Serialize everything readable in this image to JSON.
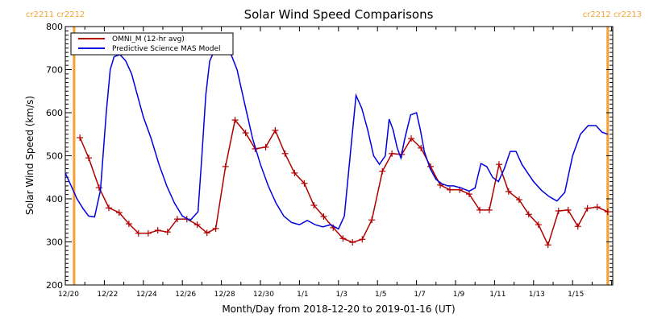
{
  "colors": {
    "omni": "#b00000",
    "model": "#0000e0",
    "carrington": "#f5a030",
    "axis": "#000000"
  },
  "chart_data": {
    "type": "line",
    "title": "Solar Wind Speed Comparisons",
    "xlabel": "Month/Day from 2018-12-20 to 2019-01-16 (UT)",
    "ylabel": "Solar Wind Speed (km/s)",
    "ylim": [
      200,
      800
    ],
    "xlim_days": [
      0,
      28.1
    ],
    "yticks": [
      200,
      300,
      400,
      500,
      600,
      700,
      800
    ],
    "ytick_labels": [
      "200",
      "300",
      "400",
      "500",
      "600",
      "700",
      "800"
    ],
    "xticks_days": [
      0,
      2,
      4,
      6,
      8,
      10,
      12,
      14,
      16,
      18,
      20,
      22,
      24,
      26
    ],
    "xtick_labels": [
      "12/20",
      "12/22",
      "12/24",
      "12/26",
      "12/28",
      "12/30",
      "1/1",
      "1/3",
      "1/5",
      "1/7",
      "1/9",
      "1/11",
      "1/13",
      "1/15"
    ],
    "legend": {
      "position": "top-left",
      "entries": [
        "OMNI_M (12-hr avg)",
        "Predictive Science MAS Model"
      ]
    },
    "carrington_markers": [
      {
        "day": 0.45,
        "labels": [
          "cr2211",
          "cr2212"
        ],
        "side": "left"
      },
      {
        "day": 27.8,
        "labels": [
          "cr2212",
          "cr2213"
        ],
        "side": "right"
      }
    ],
    "series": [
      {
        "name": "OMNI_M (12-hr avg)",
        "x_days": [
          0.75,
          1.2,
          1.73,
          2.23,
          2.76,
          3.26,
          3.75,
          4.25,
          4.74,
          5.24,
          5.74,
          6.23,
          6.76,
          7.26,
          7.71,
          8.21,
          8.7,
          9.24,
          9.73,
          10.27,
          10.76,
          11.26,
          11.75,
          12.25,
          12.74,
          13.24,
          13.73,
          14.23,
          14.72,
          15.22,
          15.71,
          16.25,
          16.74,
          17.24,
          17.73,
          18.23,
          18.72,
          19.22,
          19.71,
          20.21,
          20.7,
          21.24,
          21.73,
          22.23,
          22.72,
          23.26,
          23.75,
          24.25,
          24.74,
          25.28,
          25.77,
          26.27,
          26.76,
          27.26,
          27.8
        ],
        "values": [
          542,
          495,
          426,
          379,
          368,
          342,
          320,
          320,
          327,
          323,
          353,
          353,
          340,
          321,
          331,
          475,
          583,
          553,
          516,
          520,
          559,
          505,
          460,
          436,
          385,
          359,
          333,
          308,
          299,
          306,
          351,
          464,
          505,
          503,
          540,
          518,
          475,
          432,
          421,
          421,
          411,
          374,
          374,
          480,
          417,
          398,
          364,
          340,
          293,
          372,
          374,
          336,
          378,
          381,
          370
        ]
      },
      {
        "name": "Predictive Science MAS Model",
        "x_days": [
          0,
          0.3,
          0.6,
          0.9,
          1.2,
          1.5,
          1.8,
          2.1,
          2.3,
          2.5,
          2.8,
          3.1,
          3.4,
          3.7,
          4.0,
          4.4,
          4.8,
          5.2,
          5.6,
          6.0,
          6.4,
          6.8,
          7.0,
          7.2,
          7.4,
          7.6,
          7.9,
          8.2,
          8.5,
          8.8,
          9.2,
          9.6,
          10.0,
          10.4,
          10.8,
          11.2,
          11.6,
          12.0,
          12.4,
          12.8,
          13.2,
          13.6,
          14.0,
          14.3,
          14.6,
          14.9,
          15.2,
          15.5,
          15.8,
          16.1,
          16.4,
          16.6,
          16.8,
          17.0,
          17.2,
          17.4,
          17.7,
          18.0,
          18.2,
          18.4,
          18.7,
          19.0,
          19.3,
          19.6,
          19.9,
          20.3,
          20.7,
          21.0,
          21.3,
          21.6,
          21.9,
          22.2,
          22.5,
          22.8,
          23.1,
          23.4,
          23.7,
          24.0,
          24.4,
          24.8,
          25.2,
          25.6,
          26.0,
          26.4,
          26.8,
          27.2,
          27.5,
          27.8
        ],
        "values": [
          460,
          430,
          400,
          378,
          360,
          358,
          420,
          600,
          700,
          730,
          735,
          720,
          690,
          640,
          590,
          540,
          480,
          430,
          390,
          360,
          350,
          370,
          500,
          640,
          720,
          740,
          745,
          740,
          735,
          700,
          620,
          540,
          480,
          430,
          390,
          360,
          345,
          340,
          350,
          340,
          335,
          340,
          330,
          360,
          500,
          640,
          610,
          560,
          500,
          480,
          500,
          585,
          560,
          520,
          495,
          540,
          595,
          600,
          560,
          510,
          470,
          445,
          435,
          430,
          430,
          425,
          418,
          425,
          482,
          475,
          450,
          440,
          470,
          510,
          510,
          480,
          460,
          440,
          420,
          405,
          395,
          415,
          500,
          550,
          570,
          570,
          555,
          550
        ]
      }
    ]
  }
}
